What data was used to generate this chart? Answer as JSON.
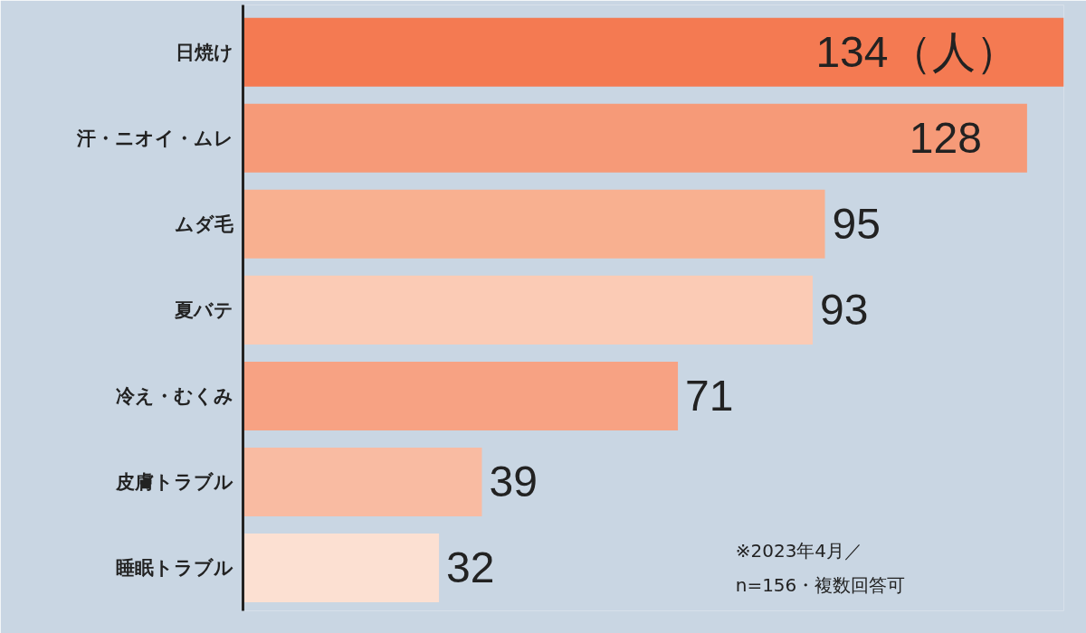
{
  "chart_data": {
    "type": "bar",
    "orientation": "horizontal",
    "categories": [
      "日焼け",
      "汗・ニオイ・ムレ",
      "ムダ毛",
      "夏バテ",
      "冷え・むくみ",
      "皮膚トラブル",
      "睡眠トラブル"
    ],
    "values": [
      134,
      128,
      95,
      93,
      71,
      39,
      32
    ],
    "colors": [
      "#f47a52",
      "#f69a78",
      "#f8b090",
      "#fbcbb5",
      "#f7a283",
      "#f9bba2",
      "#fce0d2"
    ],
    "value_labels": [
      "134（人）",
      "128",
      "95",
      "93",
      "71",
      "39",
      "32"
    ],
    "annotations": [
      "※2023年4月／\nn=156・複数回答可"
    ],
    "grid": false
  }
}
